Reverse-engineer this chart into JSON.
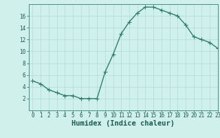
{
  "x": [
    0,
    1,
    2,
    3,
    4,
    5,
    6,
    7,
    8,
    9,
    10,
    11,
    12,
    13,
    14,
    15,
    16,
    17,
    18,
    19,
    20,
    21,
    22,
    23
  ],
  "y": [
    5,
    4.5,
    3.5,
    3,
    2.5,
    2.5,
    2,
    2,
    2,
    6.5,
    9.5,
    13,
    15,
    16.5,
    17.5,
    17.5,
    17,
    16.5,
    16,
    14.5,
    12.5,
    12,
    11.5,
    10.5
  ],
  "line_color": "#2d7d6d",
  "marker": "+",
  "marker_size": 4,
  "bg_color": "#cff0eb",
  "grid_color": "#b5ddd8",
  "xlabel": "Humidex (Indice chaleur)",
  "xlabel_color": "#1a5c50",
  "tick_color": "#1a5c50",
  "axis_color": "#4a8c80",
  "ylim": [
    0,
    18
  ],
  "xlim": [
    -0.5,
    23
  ],
  "yticks": [
    2,
    4,
    6,
    8,
    10,
    12,
    14,
    16
  ],
  "xticks": [
    0,
    1,
    2,
    3,
    4,
    5,
    6,
    7,
    8,
    9,
    10,
    11,
    12,
    13,
    14,
    15,
    16,
    17,
    18,
    19,
    20,
    21,
    22,
    23
  ],
  "linewidth": 1.0,
  "marker_linewidth": 0.8,
  "tick_fontsize": 5.5,
  "xlabel_fontsize": 7.5
}
